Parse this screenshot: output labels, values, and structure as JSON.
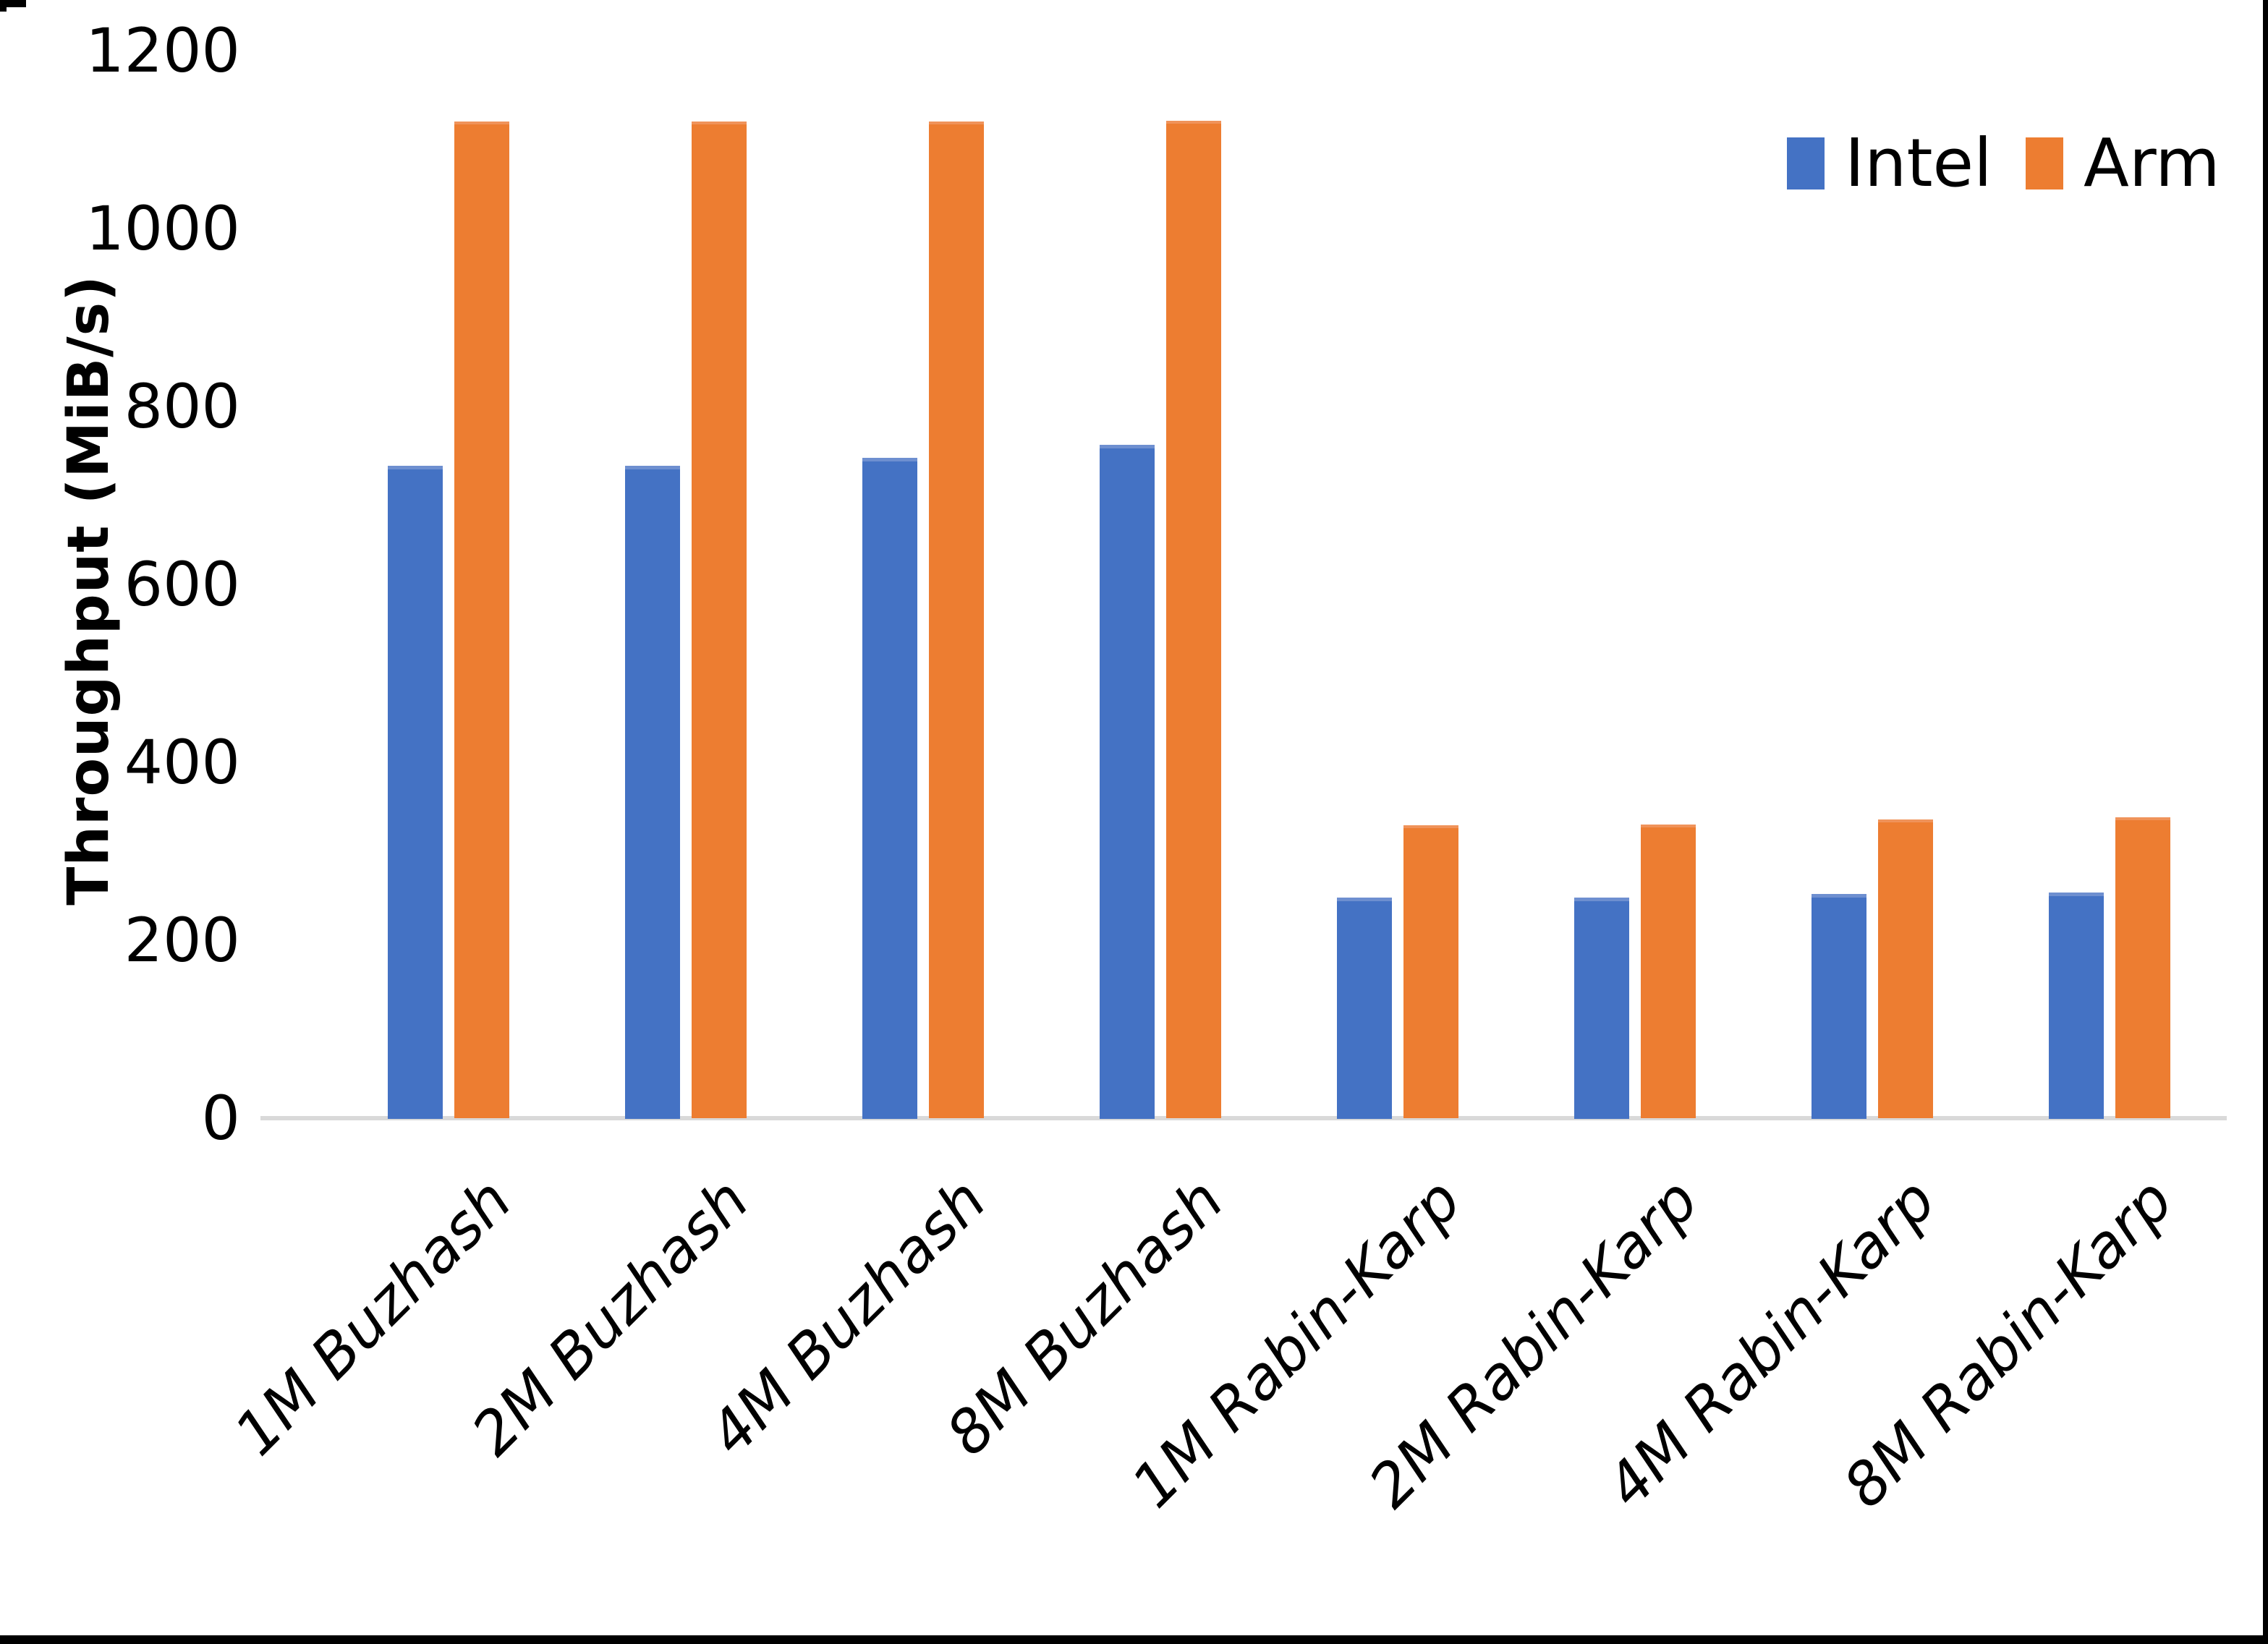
{
  "chart_data": {
    "type": "bar",
    "title": "",
    "categories": [
      "1M Buzhash",
      "2M Buzhash",
      "4M Buzhash",
      "8M Buzhash",
      "1M Rabin-Karp",
      "2M Rabin-Karp",
      "4M Rabin-Karp",
      "8M Rabin-Karp"
    ],
    "series": [
      {
        "name": "Intel",
        "color": "#4472C4",
        "values": [
          733,
          733,
          742,
          757,
          248,
          248,
          252,
          254
        ]
      },
      {
        "name": "Arm",
        "color": "#ED7D31",
        "values": [
          1120,
          1120,
          1120,
          1121,
          329,
          330,
          336,
          338
        ]
      }
    ],
    "xlabel": "",
    "ylabel": "Throughput (MiB/s)",
    "ylim": [
      0,
      1200
    ],
    "yticks": [
      0,
      200,
      400,
      600,
      800,
      1000,
      1200
    ],
    "grid": false,
    "legend_position": "top-right"
  },
  "legend": {
    "items": [
      {
        "label": "Intel",
        "color": "#4472C4"
      },
      {
        "label": "Arm",
        "color": "#ED7D31"
      }
    ]
  },
  "colors": {
    "intel": "#4472C4",
    "arm": "#ED7D31",
    "axis_line": "#D9D9D9",
    "text": "#000000",
    "background": "#FFFFFF",
    "frame": "#000000"
  }
}
